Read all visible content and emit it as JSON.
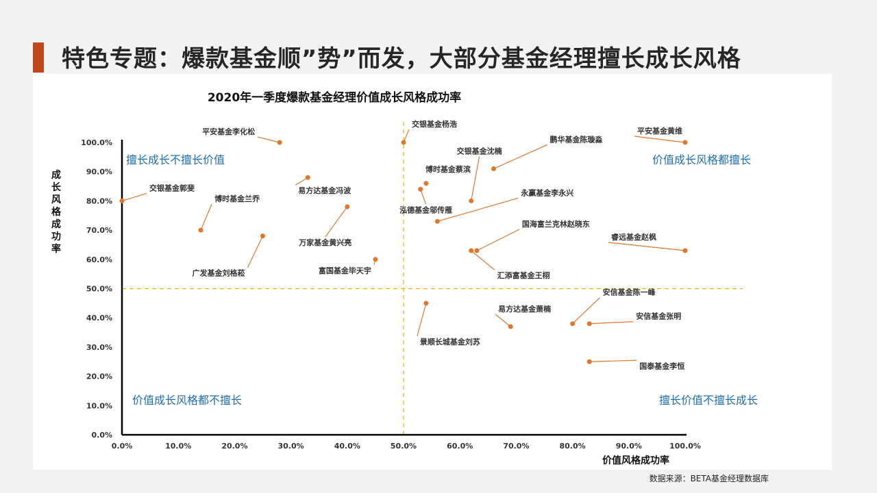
{
  "page": {
    "title": "特色专题：爆款基金顺”势”而发，大部分基金经理擅长成长风格",
    "source": "数据来源：BETA基金经理数据库"
  },
  "colors": {
    "accent": "#c0461d",
    "point": "#e0782b",
    "quadrant_line": "#f0b400",
    "quadrant_label": "#1f6fb2"
  },
  "chart_data": {
    "type": "scatter",
    "title": "2020年一季度爆款基金经理价值成长风格成功率",
    "xlabel": "价值风格成功率",
    "ylabel": "成长风格成功率",
    "xlim": [
      0,
      1
    ],
    "ylim": [
      0,
      1
    ],
    "x_ticks": [
      "0.0%",
      "10.0%",
      "20.0%",
      "30.0%",
      "40.0%",
      "50.0%",
      "60.0%",
      "70.0%",
      "80.0%",
      "90.0%",
      "100.0%"
    ],
    "y_ticks": [
      "0.0%",
      "10.0%",
      "20.0%",
      "30.0%",
      "40.0%",
      "50.0%",
      "60.0%",
      "70.0%",
      "80.0%",
      "90.0%",
      "100.0%"
    ],
    "threshold_x": 0.5,
    "threshold_y": 0.5,
    "quadrant_labels": {
      "top_left": "擅长成长不擅长价值",
      "top_right": "价值成长风格都擅长",
      "bottom_left": "价值成长风格都不擅长",
      "bottom_right": "擅长价值不擅长成长"
    },
    "points": [
      {
        "name": "交银基金郭斐",
        "x": 0.0,
        "y": 0.8
      },
      {
        "name": "博时基金兰乔",
        "x": 0.14,
        "y": 0.7
      },
      {
        "name": "平安基金李化松",
        "x": 0.28,
        "y": 1.0
      },
      {
        "name": "广发基金刘格菘",
        "x": 0.25,
        "y": 0.68
      },
      {
        "name": "易方达基金冯波",
        "x": 0.33,
        "y": 0.88
      },
      {
        "name": "万家基金黄兴亮",
        "x": 0.4,
        "y": 0.78
      },
      {
        "name": "富国基金毕天宇",
        "x": 0.45,
        "y": 0.6
      },
      {
        "name": "交银基金杨浩",
        "x": 0.5,
        "y": 1.0
      },
      {
        "name": "博时基金蔡滨",
        "x": 0.54,
        "y": 0.86
      },
      {
        "name": "泓德基金邬传雁",
        "x": 0.53,
        "y": 0.84
      },
      {
        "name": "交银基金沈楠",
        "x": 0.62,
        "y": 0.8
      },
      {
        "name": "鹏华基金陈璇淼",
        "x": 0.66,
        "y": 0.91
      },
      {
        "name": "永赢基金李永兴",
        "x": 0.56,
        "y": 0.73
      },
      {
        "name": "国海富兰克林赵晓东",
        "x": 0.63,
        "y": 0.63
      },
      {
        "name": "汇添富基金王栩",
        "x": 0.62,
        "y": 0.63
      },
      {
        "name": "平安基金黄维",
        "x": 1.0,
        "y": 1.0
      },
      {
        "name": "睿远基金赵枫",
        "x": 1.0,
        "y": 0.63
      },
      {
        "name": "景顺长城基金刘苏",
        "x": 0.54,
        "y": 0.45
      },
      {
        "name": "易方达基金萧楠",
        "x": 0.69,
        "y": 0.37
      },
      {
        "name": "安信基金陈一峰",
        "x": 0.8,
        "y": 0.38
      },
      {
        "name": "安信基金张明",
        "x": 0.83,
        "y": 0.38
      },
      {
        "name": "国泰基金李恒",
        "x": 0.83,
        "y": 0.25
      }
    ]
  }
}
